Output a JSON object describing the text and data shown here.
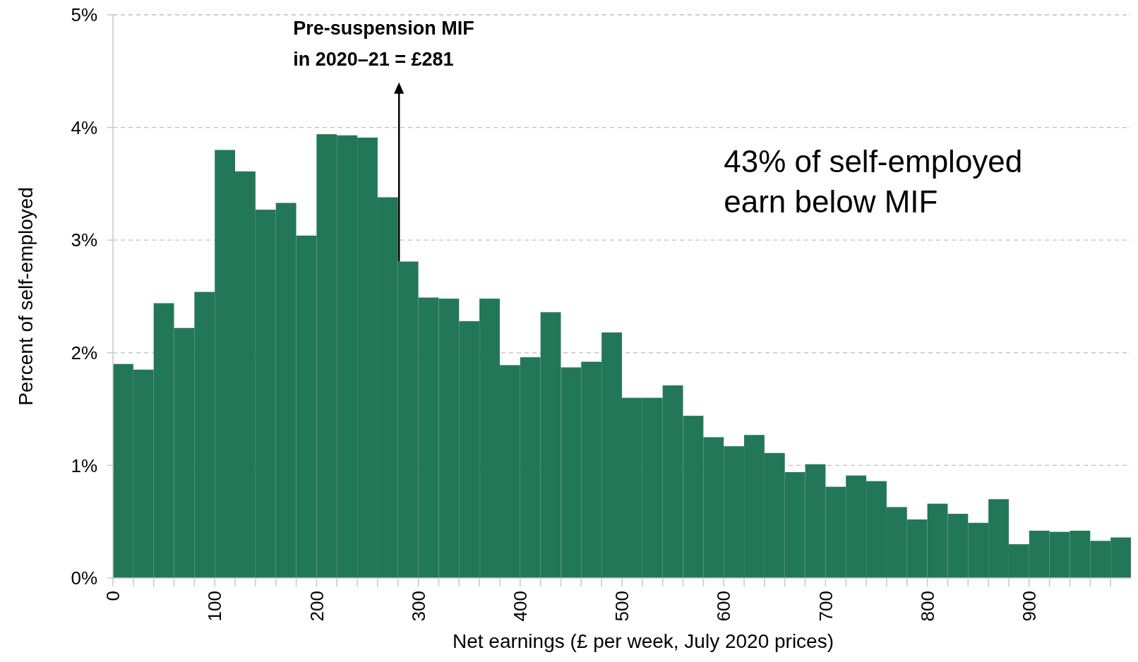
{
  "chart_data": {
    "type": "histogram",
    "xlabel": "Net earnings (£ per week, July 2020 prices)",
    "ylabel": "Percent of self-employed",
    "color": "#237759",
    "bins": [
      0,
      20,
      40,
      60,
      80,
      100,
      120,
      140,
      160,
      180,
      200,
      220,
      240,
      260,
      280,
      300,
      320,
      340,
      360,
      380,
      400,
      420,
      440,
      460,
      480,
      500,
      520,
      540,
      560,
      580,
      600,
      620,
      640,
      660,
      680,
      700,
      720,
      740,
      760,
      780,
      800,
      820,
      840,
      860,
      880,
      900,
      920,
      940,
      960,
      980,
      1000
    ],
    "values": [
      1.9,
      1.85,
      2.44,
      2.22,
      2.54,
      3.8,
      3.61,
      3.27,
      3.33,
      3.04,
      3.94,
      3.93,
      3.91,
      3.38,
      2.81,
      2.49,
      2.48,
      2.28,
      2.48,
      1.89,
      1.96,
      2.36,
      1.87,
      1.92,
      2.18,
      1.6,
      1.6,
      1.71,
      1.44,
      1.25,
      1.17,
      1.27,
      1.11,
      0.94,
      1.01,
      0.81,
      0.91,
      0.86,
      0.63,
      0.52,
      0.66,
      0.57,
      0.49,
      0.7,
      0.3,
      0.42,
      0.41,
      0.42,
      0.33,
      0.36
    ],
    "xlim": [
      0,
      1000
    ],
    "xticks": [
      0,
      {
        "value": 20,
        "label": null
      },
      {
        "value": 40,
        "label": null
      },
      {
        "value": 60,
        "label": null
      },
      {
        "value": 80,
        "label": null
      },
      100,
      {
        "value": 120,
        "label": null
      },
      {
        "value": 140,
        "label": null
      },
      {
        "value": 160,
        "label": null
      },
      {
        "value": 180,
        "label": null
      },
      200,
      {
        "value": 220,
        "label": null
      },
      {
        "value": 240,
        "label": null
      },
      {
        "value": 260,
        "label": null
      },
      {
        "value": 280,
        "label": null
      },
      300,
      {
        "value": 320,
        "label": null
      },
      {
        "value": 340,
        "label": null
      },
      {
        "value": 360,
        "label": null
      },
      {
        "value": 380,
        "label": null
      },
      400,
      {
        "value": 420,
        "label": null
      },
      {
        "value": 440,
        "label": null
      },
      {
        "value": 460,
        "label": null
      },
      {
        "value": 480,
        "label": null
      },
      500,
      {
        "value": 520,
        "label": null
      },
      {
        "value": 540,
        "label": null
      },
      {
        "value": 560,
        "label": null
      },
      {
        "value": 580,
        "label": null
      },
      600,
      {
        "value": 620,
        "label": null
      },
      {
        "value": 640,
        "label": null
      },
      {
        "value": 660,
        "label": null
      },
      {
        "value": 680,
        "label": null
      },
      700,
      {
        "value": 720,
        "label": null
      },
      {
        "value": 740,
        "label": null
      },
      {
        "value": 760,
        "label": null
      },
      {
        "value": 780,
        "label": null
      },
      800,
      {
        "value": 820,
        "label": null
      },
      {
        "value": 840,
        "label": null
      },
      {
        "value": 860,
        "label": null
      },
      {
        "value": 880,
        "label": null
      },
      900,
      {
        "value": 920,
        "label": null
      },
      {
        "value": 940,
        "label": null
      },
      {
        "value": 960,
        "label": null
      },
      {
        "value": 980,
        "label": null
      }
    ],
    "ylim": [
      0,
      5
    ],
    "yticks": [
      {
        "value": 0,
        "label": "0%"
      },
      {
        "value": 1,
        "label": "1%"
      },
      {
        "value": 2,
        "label": "2%"
      },
      {
        "value": 3,
        "label": "3%"
      },
      {
        "value": 4,
        "label": "4%"
      },
      {
        "value": 5,
        "label": "5%"
      }
    ],
    "grid": "y",
    "ref_lines": [
      {
        "axis": "x",
        "value": 281,
        "label": "Pre-suspension MIF\nin 2020–21 = £281",
        "color": "#000000"
      }
    ],
    "annotations": [
      "43% of self-employed\nearn below MIF"
    ]
  }
}
